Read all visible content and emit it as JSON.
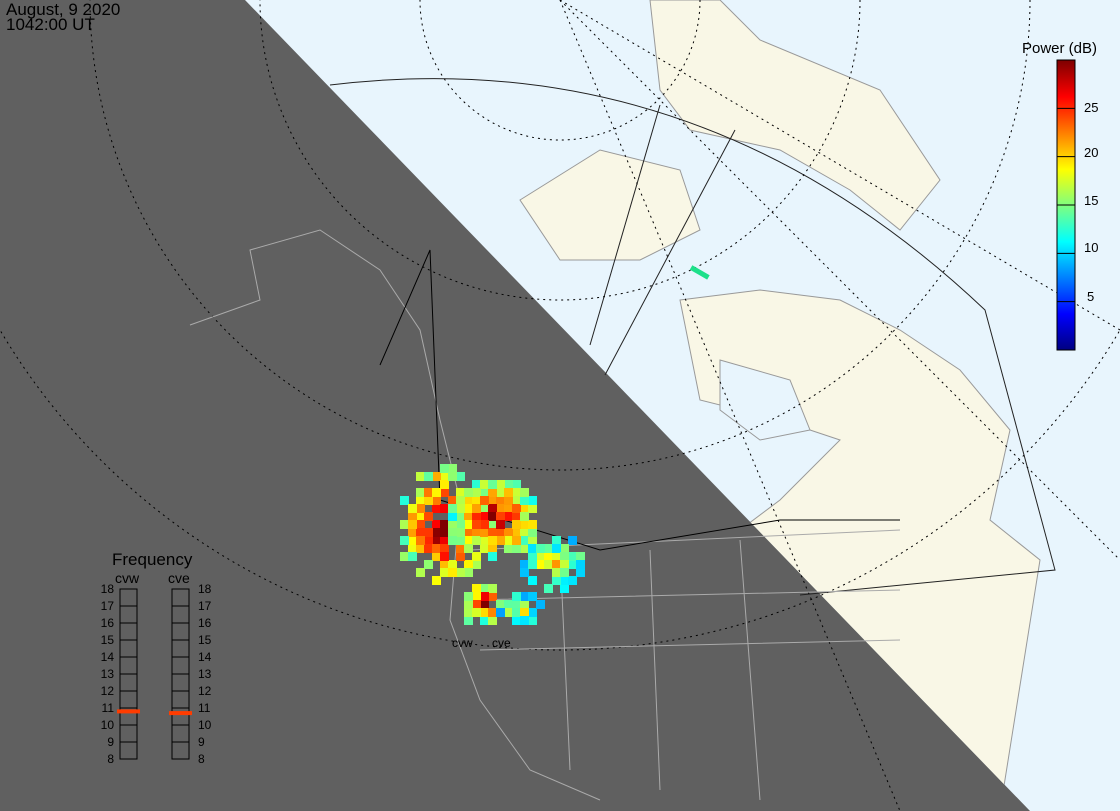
{
  "header": {
    "date": "August, 9 2020",
    "time": "1042:00 UT"
  },
  "colorbar": {
    "title": "Power (dB)",
    "range": [
      0,
      30
    ],
    "ticks": [
      "25",
      "20",
      "15",
      "10",
      "5"
    ],
    "tick_values": [
      25,
      20,
      15,
      10,
      5
    ]
  },
  "frequency": {
    "title": "Frequency",
    "range": [
      8,
      18
    ],
    "labels": [
      "18",
      "17",
      "16",
      "15",
      "14",
      "13",
      "12",
      "11",
      "10",
      "9",
      "8"
    ],
    "radars": [
      {
        "name": "cvw",
        "value_mhz": 10.8
      },
      {
        "name": "cve",
        "value_mhz": 10.7
      }
    ]
  },
  "map_labels": {
    "cvw": "cvw",
    "cve": "cve"
  },
  "colors": {
    "night": "#606060",
    "day_ocean": "#e8f5fd",
    "land": "#f9f7e6",
    "marker": "#ff3c00"
  }
}
